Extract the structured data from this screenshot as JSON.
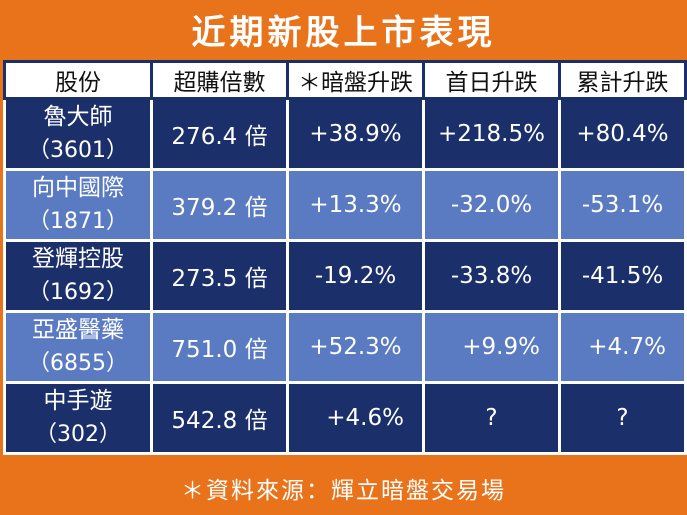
{
  "title": "近期新股上市表現",
  "headers": [
    "股份",
    "超購倍數",
    "＊暗盤升跌",
    "首日升跌",
    "累計升跌"
  ],
  "rows": [
    {
      "name": "魯大師",
      "code": "（3601）",
      "oversub": "276.4 倍",
      "grey": "+38.9%",
      "first": "+218.5%",
      "cum": "+80.4%"
    },
    {
      "name": "向中國際",
      "code": "（1871）",
      "oversub": "379.2 倍",
      "grey": "+13.3%",
      "first": "-32.0%",
      "cum": "-53.1%"
    },
    {
      "name": "登輝控股",
      "code": "（1692）",
      "oversub": "273.5 倍",
      "grey": "-19.2%",
      "first": "-33.8%",
      "cum": "-41.5%"
    },
    {
      "name": "亞盛醫藥",
      "code": "（6855）",
      "oversub": "751.0 倍",
      "grey": "+52.3%",
      "first": "+9.9%",
      "cum": "+4.7%"
    },
    {
      "name": "中手遊",
      "code": "（302）",
      "oversub": "542.8 倍",
      "grey": "+4.6%",
      "first": "?",
      "cum": "?"
    }
  ],
  "footer": "＊資料來源：輝立暗盤交易場",
  "colors": {
    "orange": "#e8731b",
    "navy": "#1b2f6b",
    "blue": "#5a7ac2"
  }
}
